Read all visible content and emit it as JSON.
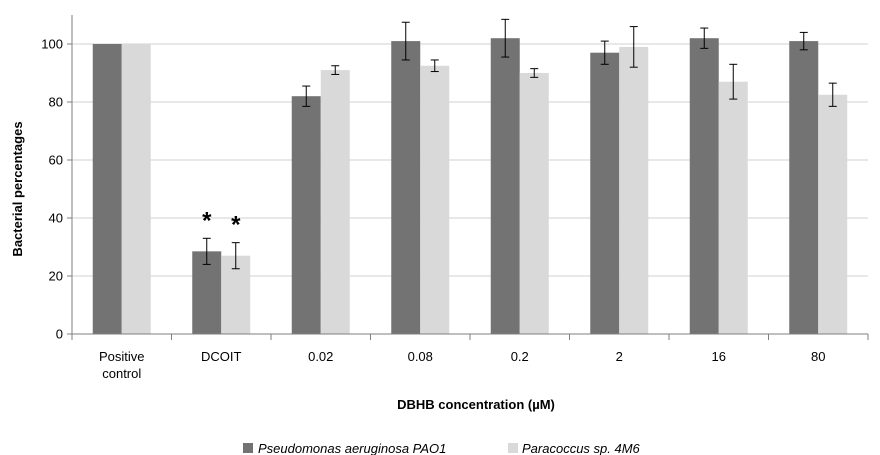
{
  "chart_data": {
    "type": "bar",
    "xlabel": "DBHB concentration (µM)",
    "ylabel": "Bacterial percentages",
    "ylim": [
      0,
      110
    ],
    "yticks": [
      0,
      20,
      40,
      60,
      80,
      100
    ],
    "grid": true,
    "legend_position": "bottom",
    "categories": [
      [
        "Positive",
        "control"
      ],
      [
        "DCOIT"
      ],
      [
        "0.02"
      ],
      [
        "0.08"
      ],
      [
        "0.2"
      ],
      [
        "2"
      ],
      [
        "16"
      ],
      [
        "80"
      ]
    ],
    "series": [
      {
        "name": "Pseudomonas aeruginosa PAO1",
        "color": "#737373",
        "values": [
          100,
          28.5,
          82,
          101,
          102,
          97,
          102,
          101
        ],
        "errors": [
          0,
          4.5,
          3.5,
          6.5,
          6.5,
          4,
          3.5,
          3
        ],
        "significant": [
          false,
          true,
          false,
          false,
          false,
          false,
          false,
          false
        ]
      },
      {
        "name": "Paracoccus sp. 4M6",
        "color": "#d9d9d9",
        "values": [
          100,
          27,
          91,
          92.5,
          90,
          99,
          87,
          82.5
        ],
        "errors": [
          0,
          4.5,
          1.5,
          2,
          1.5,
          7,
          6,
          4
        ],
        "significant": [
          false,
          true,
          false,
          false,
          false,
          false,
          false,
          false
        ]
      }
    ],
    "annotations": {
      "significance_marker": "*"
    }
  }
}
